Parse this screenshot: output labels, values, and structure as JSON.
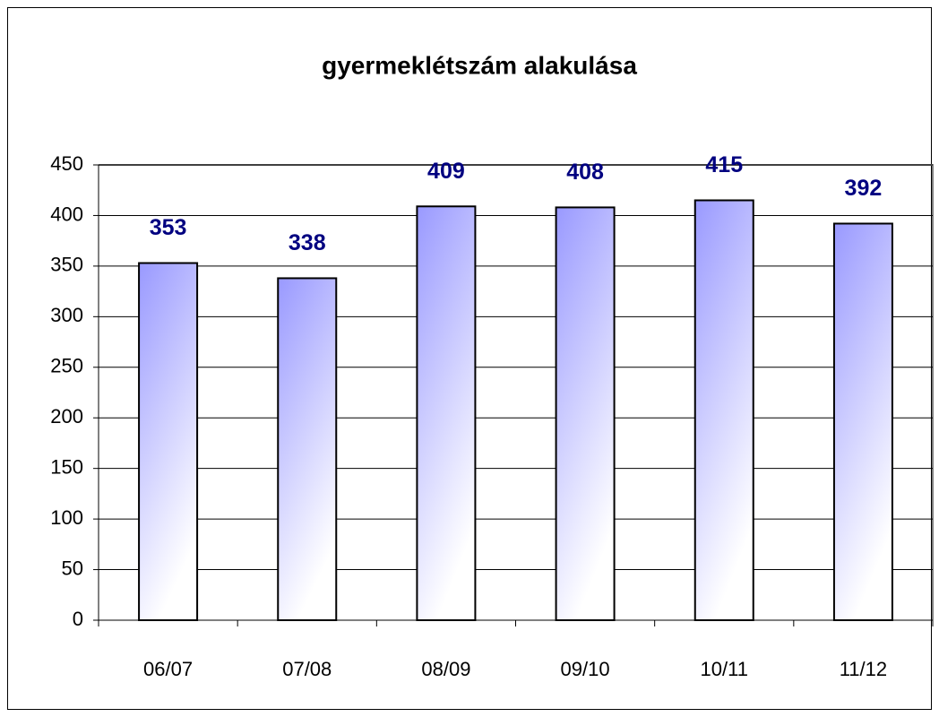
{
  "chart_data": {
    "type": "bar",
    "title": "gyermeklétszám alakulása",
    "categories": [
      "06/07",
      "07/08",
      "08/09",
      "09/10",
      "10/11",
      "11/12"
    ],
    "values": [
      353,
      338,
      409,
      408,
      415,
      392
    ],
    "color": "#9999ff",
    "ylim": [
      0,
      450
    ],
    "yticks": [
      0,
      50,
      100,
      150,
      200,
      250,
      300,
      350,
      400,
      450
    ],
    "grid": true,
    "data_labels": true
  }
}
